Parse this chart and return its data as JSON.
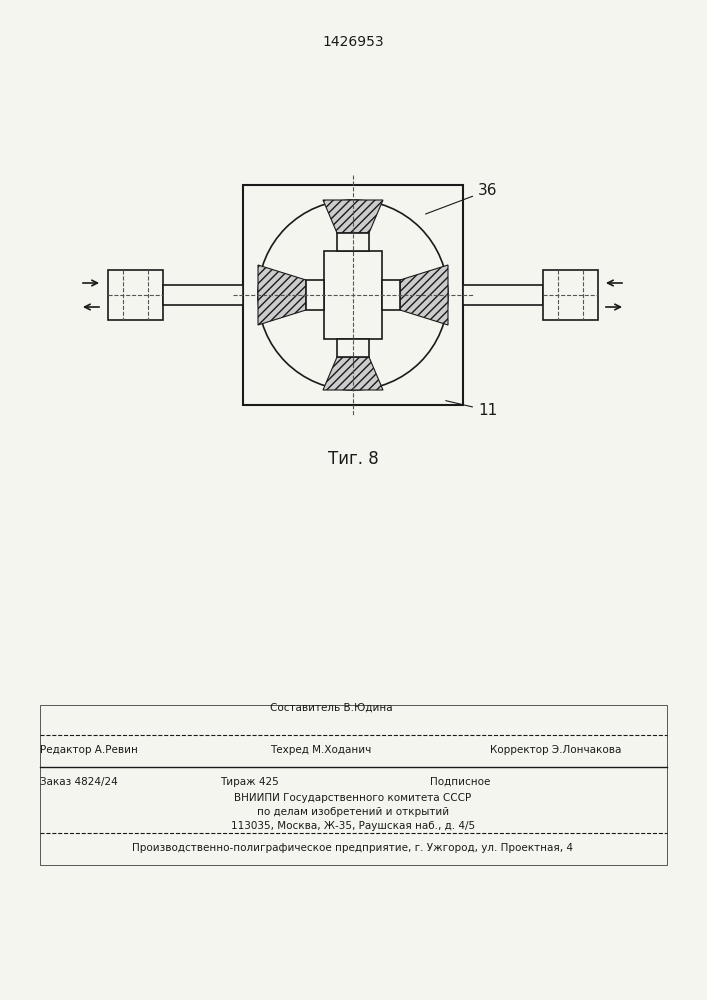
{
  "title": "1426953",
  "fig_label": "Τиг. 8",
  "label_36": "36",
  "label_11": "11",
  "footer_line1_left": "Редактор А.Ревин",
  "footer_line1_center": "Составитель В.Юдина",
  "footer_line1_right": "Корректор Э.Лончакова",
  "footer_line2_left_sub": "Техред М.Ходанич",
  "footer_line3_left": "Заказ 4824/24",
  "footer_line3_center": "Тираж 425",
  "footer_line3_right": "Подписное",
  "footer_line4": "ВНИИПИ Государственного комитета СССР",
  "footer_line5": "по делам изобретений и открытий",
  "footer_line6": "113035, Москва, Ж-35, Раушская наб., д. 4/5",
  "footer_last": "Производственно-полиграфическое предприятие, г. Ужгород, ул. Проектная, 4",
  "bg_color": "#f5f5f0",
  "line_color": "#1a1a1a",
  "hatch_color": "#555555"
}
